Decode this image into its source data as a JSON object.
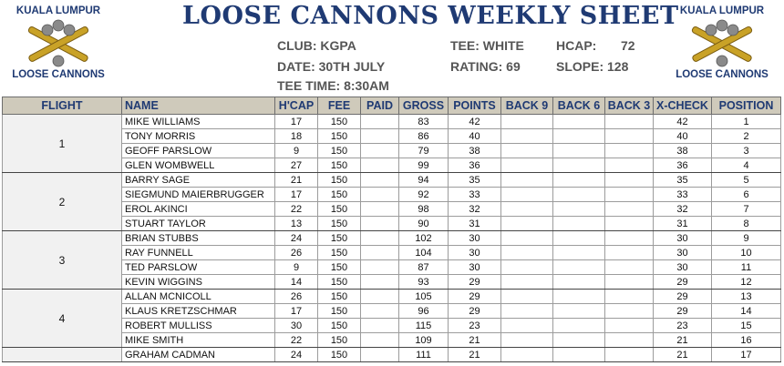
{
  "logo": {
    "top_text": "KUALA LUMPUR",
    "bottom_text": "LOOSE CANNONS"
  },
  "title": "LOOSE CANNONS WEEKLY SHEET",
  "info": {
    "club": "CLUB: KGPA",
    "date": "DATE: 30TH JULY",
    "tee_time": "TEE TIME: 8:30AM",
    "tee": "TEE: WHITE",
    "rating": "RATING: 69",
    "hcap_label": "HCAP:",
    "hcap_value": "72",
    "slope": "SLOPE: 128"
  },
  "columns": [
    "FLIGHT",
    "NAME",
    "H'CAP",
    "FEE",
    "PAID",
    "GROSS",
    "POINTS",
    "BACK 9",
    "BACK 6",
    "BACK 3",
    "X-CHECK",
    "POSITION"
  ],
  "flights": [
    {
      "label": "1",
      "rows": [
        {
          "name": "MIKE WILLIAMS",
          "hcap": "17",
          "fee": "150",
          "paid": "",
          "gross": "83",
          "points": "42",
          "back9": "",
          "back6": "",
          "back3": "",
          "xcheck": "42",
          "position": "1"
        },
        {
          "name": "TONY MORRIS",
          "hcap": "18",
          "fee": "150",
          "paid": "",
          "gross": "86",
          "points": "40",
          "back9": "",
          "back6": "",
          "back3": "",
          "xcheck": "40",
          "position": "2"
        },
        {
          "name": "GEOFF PARSLOW",
          "hcap": "9",
          "fee": "150",
          "paid": "",
          "gross": "79",
          "points": "38",
          "back9": "",
          "back6": "",
          "back3": "",
          "xcheck": "38",
          "position": "3"
        },
        {
          "name": "GLEN WOMBWELL",
          "hcap": "27",
          "fee": "150",
          "paid": "",
          "gross": "99",
          "points": "36",
          "back9": "",
          "back6": "",
          "back3": "",
          "xcheck": "36",
          "position": "4"
        }
      ]
    },
    {
      "label": "2",
      "rows": [
        {
          "name": "BARRY SAGE",
          "hcap": "21",
          "fee": "150",
          "paid": "",
          "gross": "94",
          "points": "35",
          "back9": "",
          "back6": "",
          "back3": "",
          "xcheck": "35",
          "position": "5"
        },
        {
          "name": "SIEGMUND MAIERBRUGGER",
          "hcap": "17",
          "fee": "150",
          "paid": "",
          "gross": "92",
          "points": "33",
          "back9": "",
          "back6": "",
          "back3": "",
          "xcheck": "33",
          "position": "6"
        },
        {
          "name": "EROL AKINCI",
          "hcap": "22",
          "fee": "150",
          "paid": "",
          "gross": "98",
          "points": "32",
          "back9": "",
          "back6": "",
          "back3": "",
          "xcheck": "32",
          "position": "7"
        },
        {
          "name": "STUART TAYLOR",
          "hcap": "13",
          "fee": "150",
          "paid": "",
          "gross": "90",
          "points": "31",
          "back9": "",
          "back6": "",
          "back3": "",
          "xcheck": "31",
          "position": "8"
        }
      ]
    },
    {
      "label": "3",
      "rows": [
        {
          "name": "BRIAN STUBBS",
          "hcap": "24",
          "fee": "150",
          "paid": "",
          "gross": "102",
          "points": "30",
          "back9": "",
          "back6": "",
          "back3": "",
          "xcheck": "30",
          "position": "9"
        },
        {
          "name": "RAY FUNNELL",
          "hcap": "26",
          "fee": "150",
          "paid": "",
          "gross": "104",
          "points": "30",
          "back9": "",
          "back6": "",
          "back3": "",
          "xcheck": "30",
          "position": "10"
        },
        {
          "name": "TED PARSLOW",
          "hcap": "9",
          "fee": "150",
          "paid": "",
          "gross": "87",
          "points": "30",
          "back9": "",
          "back6": "",
          "back3": "",
          "xcheck": "30",
          "position": "11"
        },
        {
          "name": "KEVIN WIGGINS",
          "hcap": "14",
          "fee": "150",
          "paid": "",
          "gross": "93",
          "points": "29",
          "back9": "",
          "back6": "",
          "back3": "",
          "xcheck": "29",
          "position": "12"
        }
      ]
    },
    {
      "label": "4",
      "rows": [
        {
          "name": "ALLAN MCNICOLL",
          "hcap": "26",
          "fee": "150",
          "paid": "",
          "gross": "105",
          "points": "29",
          "back9": "",
          "back6": "",
          "back3": "",
          "xcheck": "29",
          "position": "13"
        },
        {
          "name": "KLAUS KRETZSCHMAR",
          "hcap": "17",
          "fee": "150",
          "paid": "",
          "gross": "96",
          "points": "29",
          "back9": "",
          "back6": "",
          "back3": "",
          "xcheck": "29",
          "position": "14"
        },
        {
          "name": "ROBERT MULLISS",
          "hcap": "30",
          "fee": "150",
          "paid": "",
          "gross": "115",
          "points": "23",
          "back9": "",
          "back6": "",
          "back3": "",
          "xcheck": "23",
          "position": "15"
        },
        {
          "name": "MIKE SMITH",
          "hcap": "22",
          "fee": "150",
          "paid": "",
          "gross": "109",
          "points": "21",
          "back9": "",
          "back6": "",
          "back3": "",
          "xcheck": "21",
          "position": "16"
        }
      ]
    },
    {
      "label": "",
      "rows": [
        {
          "name": "GRAHAM CADMAN",
          "hcap": "24",
          "fee": "150",
          "paid": "",
          "gross": "111",
          "points": "21",
          "back9": "",
          "back6": "",
          "back3": "",
          "xcheck": "21",
          "position": "17"
        }
      ]
    }
  ],
  "colors": {
    "title": "#1f3a73",
    "header_bg": "#cfcabb",
    "flight_bg": "#f1f1f1",
    "info_text": "#555555",
    "cannon_gold": "#c9a227"
  }
}
